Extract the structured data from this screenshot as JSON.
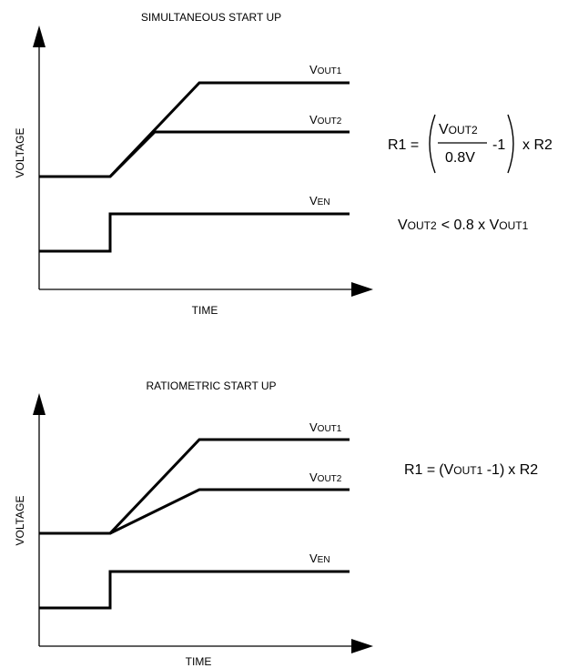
{
  "panels": [
    {
      "id": "simultaneous",
      "title": "SIMULTANEOUS START UP",
      "y_axis_label": "VOLTAGE",
      "x_axis_label": "TIME",
      "signals": [
        {
          "main": "V",
          "sub": "OUT1"
        },
        {
          "main": "V",
          "sub": "OUT2"
        },
        {
          "main": "V",
          "sub": "EN"
        }
      ],
      "equations": {
        "r1_prefix": "R1 =",
        "numerator_main": "V",
        "numerator_sub": "OUT2",
        "denominator": "0.8V",
        "minus_one": "-1",
        "times_r2": "x R2",
        "condition_lhs_main": "V",
        "condition_lhs_sub": "OUT2",
        "condition_op": "< 0.8 x V",
        "condition_rhs_sub": "OUT1"
      }
    },
    {
      "id": "ratiometric",
      "title": "RATIOMETRIC START UP",
      "y_axis_label": "VOLTAGE",
      "x_axis_label": "TIME",
      "signals": [
        {
          "main": "V",
          "sub": "OUT1"
        },
        {
          "main": "V",
          "sub": "OUT2"
        },
        {
          "main": "V",
          "sub": "EN"
        }
      ],
      "equations": {
        "r1_prefix": "R1 =",
        "open_paren": "(V",
        "inner_sub": "OUT1",
        "inner_rest": " -1)",
        "times_r2": "x R2"
      }
    }
  ]
}
